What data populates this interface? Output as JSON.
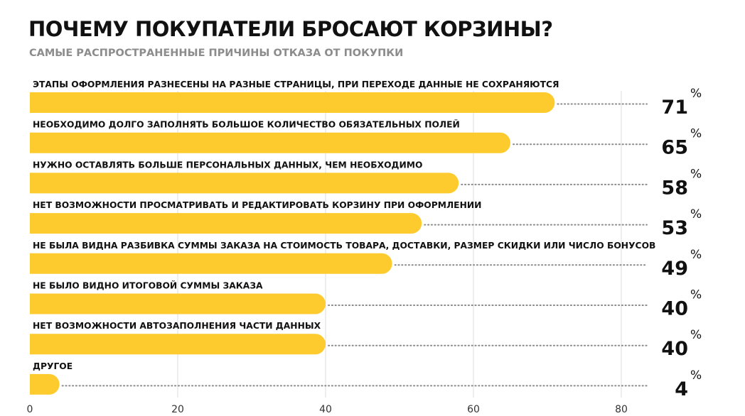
{
  "chart_data": {
    "type": "bar",
    "orientation": "horizontal",
    "title": "ПОЧЕМУ ПОКУПАТЕЛИ БРОСАЮТ КОРЗИНЫ?",
    "subtitle": "САМЫЕ РАСПРОСТРАНЕННЫЕ ПРИЧИНЫ ОТКАЗА ОТ ПОКУПКИ",
    "categories": [
      "ЭТАПЫ ОФОРМЛЕНИЯ РАЗНЕСЕНЫ НА РАЗНЫЕ СТРАНИЦЫ, ПРИ ПЕРЕХОДЕ ДАННЫЕ НЕ СОХРАНЯЮТСЯ",
      "НЕОБХОДИМО ДОЛГО ЗАПОЛНЯТЬ БОЛЬШОЕ КОЛИЧЕСТВО ОБЯЗАТЕЛЬНЫХ ПОЛЕЙ",
      "НУЖНО ОСТАВЛЯТЬ БОЛЬШЕ ПЕРСОНАЛЬНЫХ ДАННЫХ, ЧЕМ НЕОБХОДИМО",
      "НЕТ ВОЗМОЖНОСТИ ПРОСМАТРИВАТЬ И РЕДАКТИРОВАТЬ КОРЗИНУ ПРИ ОФОРМЛЕНИИ",
      "НЕ БЫЛА ВИДНА РАЗБИВКА СУММЫ ЗАКАЗА НА СТОИМОСТЬ ТОВАРА, ДОСТАВКИ, РАЗМЕР СКИДКИ ИЛИ ЧИСЛО БОНУСОВ",
      "НЕ БЫЛО ВИДНО ИТОГОВОЙ СУММЫ ЗАКАЗА",
      "НЕТ ВОЗМОЖНОСТИ АВТОЗАПОЛНЕНИЯ ЧАСТИ ДАННЫХ",
      "ДРУГОЕ"
    ],
    "values": [
      71,
      65,
      58,
      53,
      49,
      40,
      40,
      4
    ],
    "value_labels": [
      "71",
      "65",
      "58",
      "53",
      "49",
      "40",
      "40",
      "4"
    ],
    "unit": "%",
    "xlim": [
      0,
      80
    ],
    "xticks": [
      0,
      20,
      40,
      60,
      80
    ],
    "xtick_labels": [
      "0",
      "20",
      "40",
      "60",
      "80"
    ],
    "grid": true,
    "colors": {
      "bar": "#fecb2f",
      "grid": "#dcdcdc",
      "leader": "#8a8a8a"
    }
  }
}
